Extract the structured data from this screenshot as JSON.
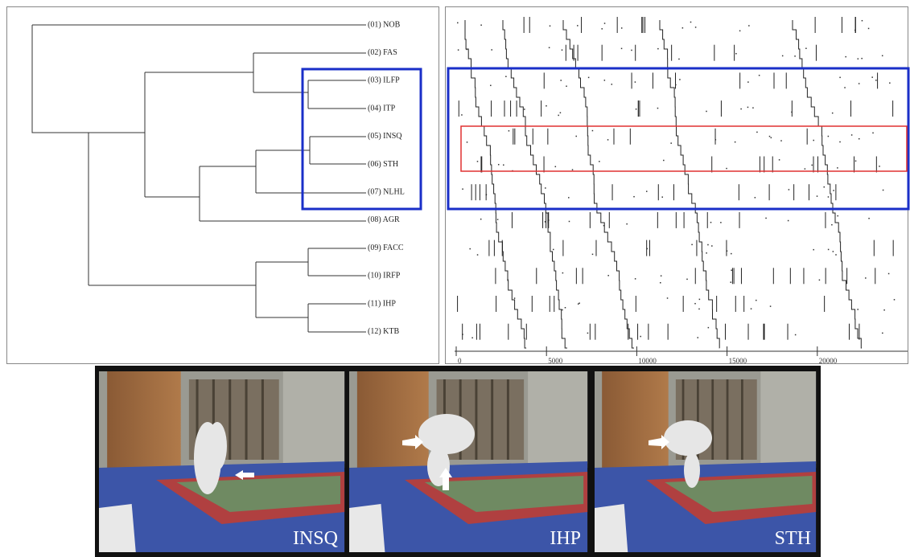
{
  "dendrogram": {
    "labels": [
      "(01) NOB",
      "(02) FAS",
      "(03) ILFP",
      "(04) ITP",
      "(05) INSQ",
      "(06) STH",
      "(07) NLHL",
      "(08) AGR",
      "(09) FACC",
      "(10) IRFP",
      "(11) IHP",
      "(12) KTB"
    ]
  },
  "raster": {
    "axis": {
      "xlim": [
        0,
        25000
      ],
      "ticks": [
        0,
        5000,
        10000,
        15000,
        20000
      ]
    }
  },
  "photos": [
    {
      "caption": "INSQ"
    },
    {
      "caption": "IHP"
    },
    {
      "caption": "STH"
    }
  ]
}
